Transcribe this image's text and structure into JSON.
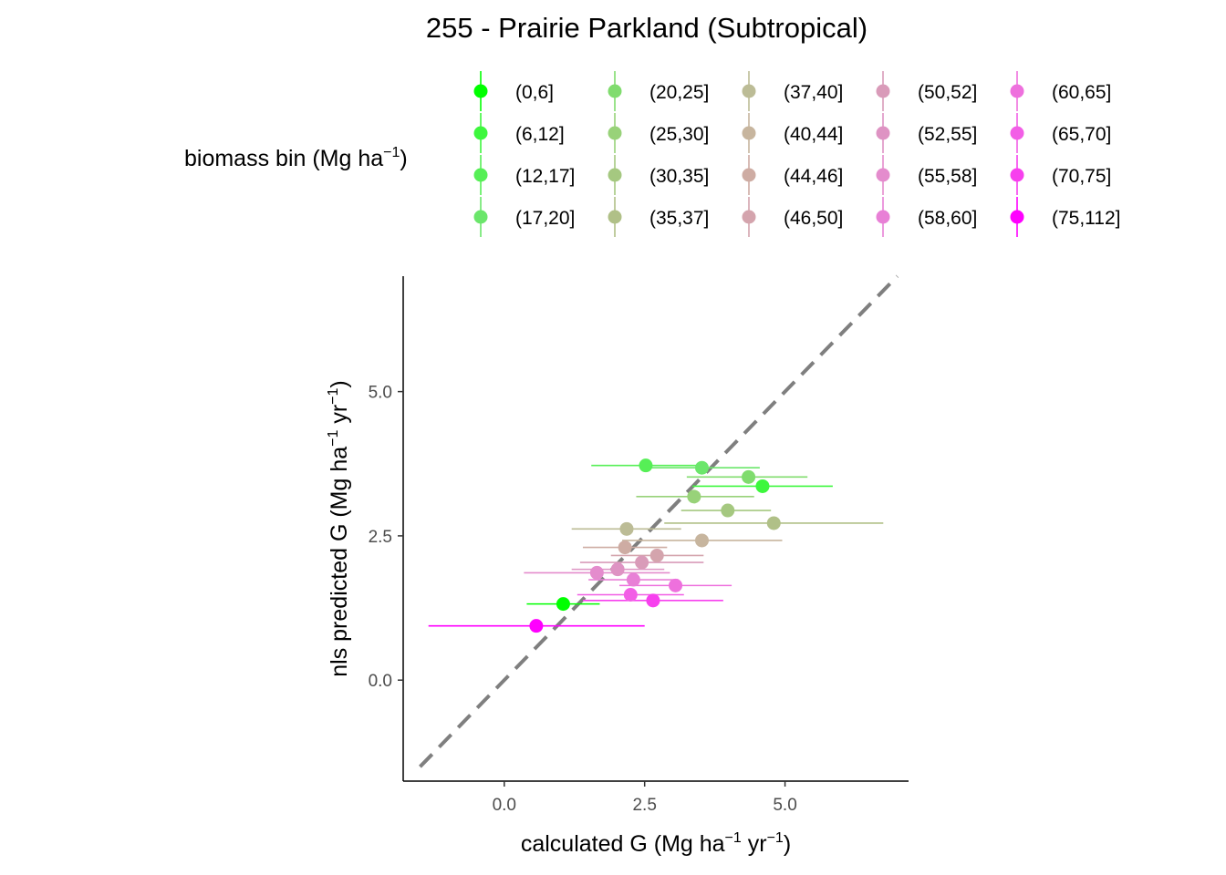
{
  "chart_data": {
    "type": "scatter",
    "title": "255 - Prairie Parkland (Subtropical)",
    "xlabel": {
      "base": "calculated G (Mg ha",
      "sup1": "−1",
      "mid": " yr",
      "sup2": "−1",
      "end": ")"
    },
    "ylabel": {
      "base": "nls predicted G (Mg ha",
      "sup1": "−1",
      "mid": " yr",
      "sup2": "−1",
      "end": ")"
    },
    "xlim": [
      -1.8,
      7.2
    ],
    "ylim": [
      -1.75,
      7.0
    ],
    "xticks": [
      {
        "value": 0.0,
        "label": "0.0"
      },
      {
        "value": 2.5,
        "label": "2.5"
      },
      {
        "value": 5.0,
        "label": "5.0"
      }
    ],
    "yticks": [
      {
        "value": 0.0,
        "label": "0.0"
      },
      {
        "value": 2.5,
        "label": "2.5"
      },
      {
        "value": 5.0,
        "label": "5.0"
      }
    ],
    "reference_line": {
      "slope": 1,
      "intercept": 0,
      "style": "dashed",
      "color": "#7f7f7f",
      "x_from": -1.5,
      "x_to": 7.0
    },
    "grid": false,
    "legend": {
      "title": {
        "base": "biomass bin (Mg ha",
        "sup": "−1",
        "end": ")"
      },
      "placement": "top",
      "columns": 5
    },
    "series": [
      {
        "name": "(0,6]",
        "color": "#00ff00",
        "x": 1.05,
        "y": 1.32,
        "xmin": 0.4,
        "xmax": 1.7
      },
      {
        "name": "(6,12]",
        "color": "#3df73d",
        "x": 4.6,
        "y": 3.36,
        "xmin": 3.35,
        "xmax": 5.85
      },
      {
        "name": "(12,17]",
        "color": "#56ef56",
        "x": 2.52,
        "y": 3.72,
        "xmin": 1.55,
        "xmax": 3.5
      },
      {
        "name": "(17,20]",
        "color": "#6be66b",
        "x": 3.52,
        "y": 3.68,
        "xmin": 2.55,
        "xmax": 4.55
      },
      {
        "name": "(20,25]",
        "color": "#80dc6e",
        "x": 4.35,
        "y": 3.52,
        "xmin": 3.25,
        "xmax": 5.4
      },
      {
        "name": "(25,30]",
        "color": "#98d279",
        "x": 3.38,
        "y": 3.18,
        "xmin": 2.35,
        "xmax": 4.45
      },
      {
        "name": "(30,35]",
        "color": "#a5c880",
        "x": 3.98,
        "y": 2.94,
        "xmin": 3.15,
        "xmax": 4.75
      },
      {
        "name": "(35,37]",
        "color": "#b0c087",
        "x": 4.8,
        "y": 2.72,
        "xmin": 2.85,
        "xmax": 6.75
      },
      {
        "name": "(37,40]",
        "color": "#bcbc96",
        "x": 2.18,
        "y": 2.62,
        "xmin": 1.2,
        "xmax": 3.15
      },
      {
        "name": "(40,44]",
        "color": "#c7b59e",
        "x": 3.52,
        "y": 2.42,
        "xmin": 2.1,
        "xmax": 4.95
      },
      {
        "name": "(44,46]",
        "color": "#ceaca3",
        "x": 2.15,
        "y": 2.3,
        "xmin": 1.4,
        "xmax": 2.9
      },
      {
        "name": "(46,50]",
        "color": "#d4a4ad",
        "x": 2.72,
        "y": 2.16,
        "xmin": 1.9,
        "xmax": 3.55
      },
      {
        "name": "(50,52]",
        "color": "#d99bb9",
        "x": 2.45,
        "y": 2.04,
        "xmin": 1.35,
        "xmax": 3.55
      },
      {
        "name": "(52,55]",
        "color": "#de93c3",
        "x": 2.02,
        "y": 1.92,
        "xmin": 1.2,
        "xmax": 2.85
      },
      {
        "name": "(55,58]",
        "color": "#e48ccd",
        "x": 1.65,
        "y": 1.86,
        "xmin": 0.35,
        "xmax": 2.95
      },
      {
        "name": "(58,60]",
        "color": "#e880d6",
        "x": 2.3,
        "y": 1.74,
        "xmin": 1.5,
        "xmax": 3.1
      },
      {
        "name": "(60,65]",
        "color": "#ee70dd",
        "x": 3.05,
        "y": 1.64,
        "xmin": 2.05,
        "xmax": 4.05
      },
      {
        "name": "(65,70]",
        "color": "#f25ee6",
        "x": 2.25,
        "y": 1.48,
        "xmin": 1.3,
        "xmax": 3.2
      },
      {
        "name": "(70,75]",
        "color": "#f740ee",
        "x": 2.65,
        "y": 1.38,
        "xmin": 1.4,
        "xmax": 3.9
      },
      {
        "name": "(75,112]",
        "color": "#ff00ff",
        "x": 0.57,
        "y": 0.94,
        "xmin": -1.35,
        "xmax": 2.5
      }
    ]
  }
}
